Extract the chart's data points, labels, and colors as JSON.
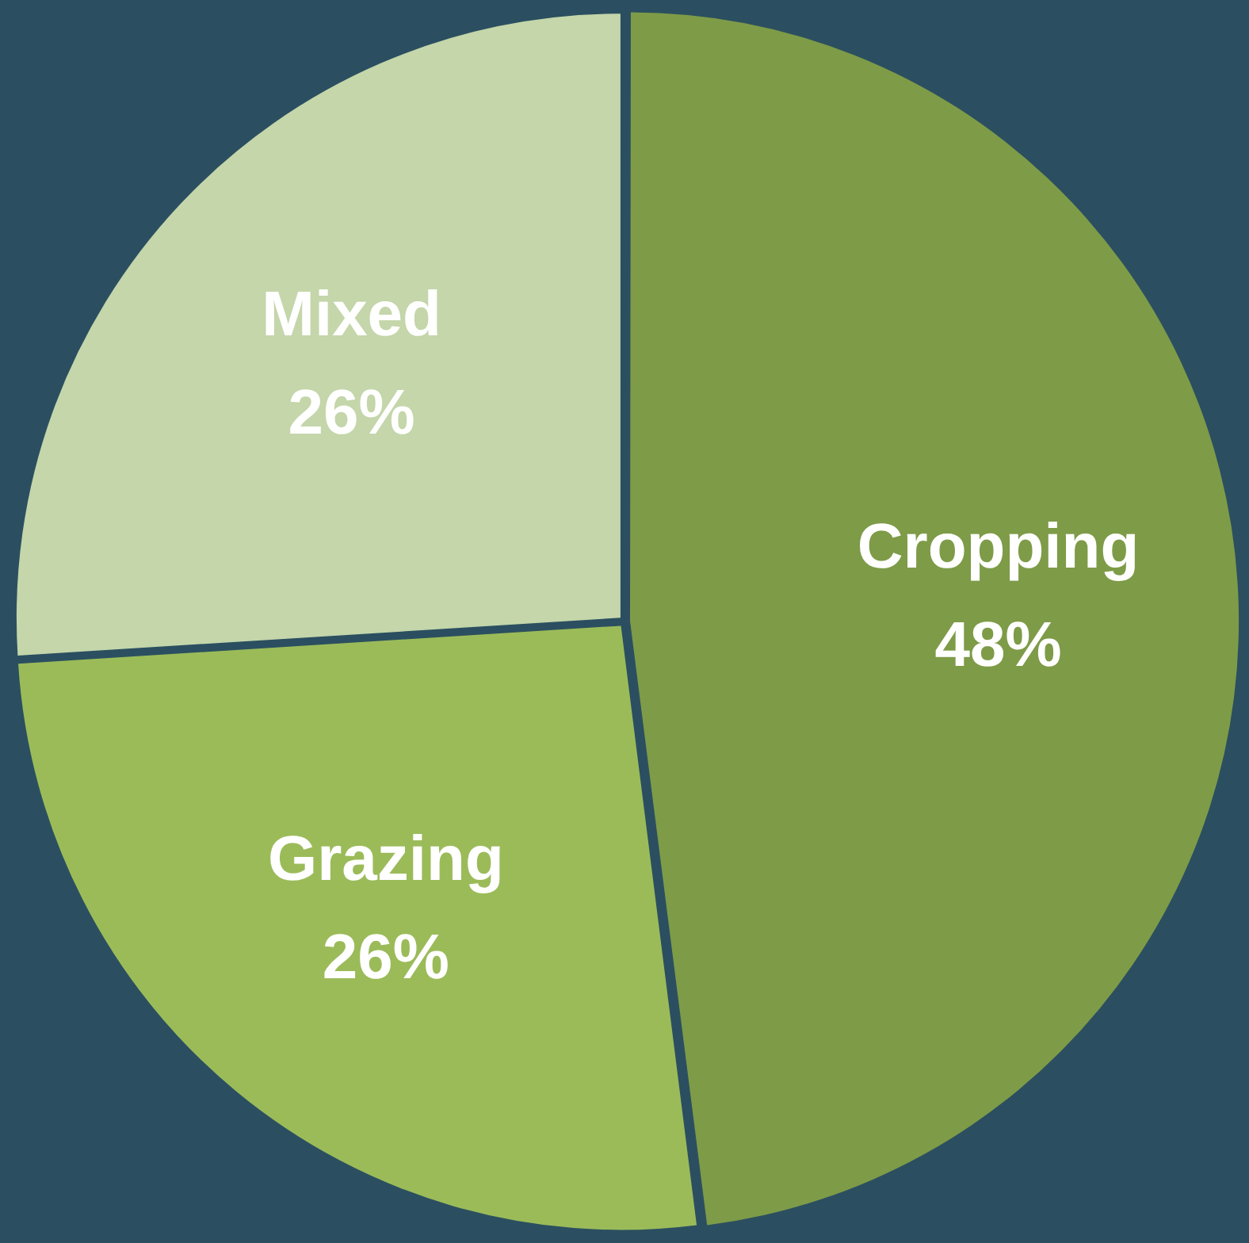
{
  "chart_data": {
    "type": "pie",
    "categories": [
      "Cropping",
      "Grazing",
      "Mixed"
    ],
    "values": [
      48,
      26,
      26
    ],
    "colors": [
      "#7e9b48",
      "#9bbb59",
      "#c4d6aa"
    ],
    "value_labels": [
      "48%",
      "26%",
      "26%"
    ],
    "legend": false
  }
}
